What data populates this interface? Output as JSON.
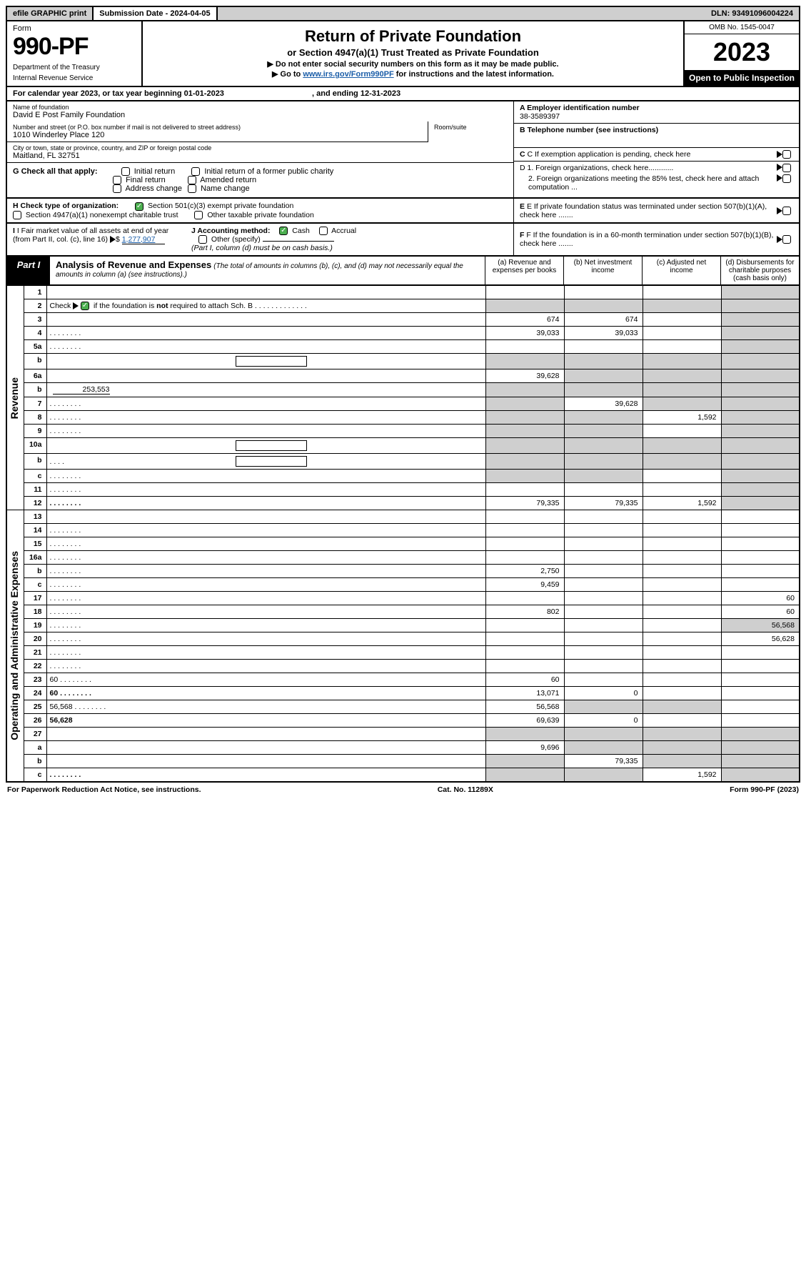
{
  "top": {
    "efile": "efile GRAPHIC print",
    "subdate_lbl": "Submission Date - ",
    "subdate": "2024-04-05",
    "dln_lbl": "DLN: ",
    "dln": "93491096004224"
  },
  "header": {
    "form_lbl": "Form",
    "form_num": "990-PF",
    "dept1": "Department of the Treasury",
    "dept2": "Internal Revenue Service",
    "title": "Return of Private Foundation",
    "subtitle": "or Section 4947(a)(1) Trust Treated as Private Foundation",
    "note1": "▶ Do not enter social security numbers on this form as it may be made public.",
    "note2_pre": "▶ Go to ",
    "note2_link": "www.irs.gov/Form990PF",
    "note2_post": " for instructions and the latest information.",
    "omb": "OMB No. 1545-0047",
    "year": "2023",
    "open": "Open to Public Inspection"
  },
  "calendar": {
    "text_pre": "For calendar year 2023, or tax year beginning ",
    "begin": "01-01-2023",
    "mid": " , and ending ",
    "end": "12-31-2023"
  },
  "info": {
    "name_lbl": "Name of foundation",
    "name": "David E Post Family Foundation",
    "addr_lbl": "Number and street (or P.O. box number if mail is not delivered to street address)",
    "addr": "1010 Winderley Place 120",
    "room_lbl": "Room/suite",
    "city_lbl": "City or town, state or province, country, and ZIP or foreign postal code",
    "city": "Maitland, FL  32751",
    "a_lbl": "A Employer identification number",
    "a_val": "38-3589397",
    "b_lbl": "B Telephone number (see instructions)",
    "c_lbl": "C If exemption application is pending, check here",
    "g_lbl": "G Check all that apply:",
    "g_opts": [
      "Initial return",
      "Final return",
      "Address change",
      "Initial return of a former public charity",
      "Amended return",
      "Name change"
    ],
    "d1": "D 1. Foreign organizations, check here............",
    "d2": "2. Foreign organizations meeting the 85% test, check here and attach computation ...",
    "h_lbl": "H Check type of organization:",
    "h_1": "Section 501(c)(3) exempt private foundation",
    "h_2": "Section 4947(a)(1) nonexempt charitable trust",
    "h_3": "Other taxable private foundation",
    "e_lbl": "E If private foundation status was terminated under section 507(b)(1)(A), check here .......",
    "i_lbl": "I Fair market value of all assets at end of year (from Part II, col. (c), line 16)",
    "i_val": "1,277,907",
    "j_lbl": "J Accounting method:",
    "j_cash": "Cash",
    "j_accr": "Accrual",
    "j_other": "Other (specify)",
    "j_note": "(Part I, column (d) must be on cash basis.)",
    "f_lbl": "F If the foundation is in a 60-month termination under section 507(b)(1)(B), check here ......."
  },
  "part1": {
    "tab": "Part I",
    "title": "Analysis of Revenue and Expenses",
    "title_note": "(The total of amounts in columns (b), (c), and (d) may not necessarily equal the amounts in column (a) (see instructions).)",
    "cols": {
      "a": "(a)  Revenue and expenses per books",
      "b": "(b)  Net investment income",
      "c": "(c)  Adjusted net income",
      "d": "(d)  Disbursements for charitable purposes (cash basis only)"
    }
  },
  "section_labels": {
    "revenue": "Revenue",
    "expenses": "Operating and Administrative Expenses"
  },
  "rows": [
    {
      "n": "1",
      "d": "",
      "a": "",
      "b": "",
      "c": "",
      "shade_d": true
    },
    {
      "n": "2",
      "d": "",
      "a": "",
      "b": "",
      "c": "",
      "shade_all": true,
      "dots": true,
      "check": true
    },
    {
      "n": "3",
      "d": "",
      "a": "674",
      "b": "674",
      "c": "",
      "shade_d": true
    },
    {
      "n": "4",
      "d": "",
      "a": "39,033",
      "b": "39,033",
      "c": "",
      "shade_d": true,
      "dots": true
    },
    {
      "n": "5a",
      "d": "",
      "a": "",
      "b": "",
      "c": "",
      "shade_d": true,
      "dots": true
    },
    {
      "n": "b",
      "d": "",
      "a": "",
      "b": "",
      "c": "",
      "shade_all": true,
      "inline_box": true
    },
    {
      "n": "6a",
      "d": "",
      "a": "39,628",
      "b": "",
      "c": "",
      "shade_bcd": true
    },
    {
      "n": "b",
      "d": "",
      "a": "",
      "b": "",
      "c": "",
      "shade_all": true,
      "inline_val": "253,553"
    },
    {
      "n": "7",
      "d": "",
      "a": "",
      "b": "39,628",
      "c": "",
      "shade_a": true,
      "shade_cd": true,
      "dots": true
    },
    {
      "n": "8",
      "d": "",
      "a": "",
      "b": "",
      "c": "1,592",
      "shade_ab": true,
      "shade_d": true,
      "dots": true
    },
    {
      "n": "9",
      "d": "",
      "a": "",
      "b": "",
      "c": "",
      "shade_ab": true,
      "shade_d": true,
      "dots": true
    },
    {
      "n": "10a",
      "d": "",
      "a": "",
      "b": "",
      "c": "",
      "shade_all": true,
      "inline_box": true
    },
    {
      "n": "b",
      "d": "",
      "a": "",
      "b": "",
      "c": "",
      "shade_all": true,
      "inline_box": true,
      "dots": true
    },
    {
      "n": "c",
      "d": "",
      "a": "",
      "b": "",
      "c": "",
      "shade_ab": true,
      "shade_d": true,
      "dots": true
    },
    {
      "n": "11",
      "d": "",
      "a": "",
      "b": "",
      "c": "",
      "shade_d": true,
      "dots": true
    },
    {
      "n": "12",
      "d": "",
      "a": "79,335",
      "b": "79,335",
      "c": "1,592",
      "shade_d": true,
      "bold": true,
      "dots": true
    },
    {
      "n": "13",
      "d": "",
      "a": "",
      "b": "",
      "c": ""
    },
    {
      "n": "14",
      "d": "",
      "a": "",
      "b": "",
      "c": "",
      "dots": true
    },
    {
      "n": "15",
      "d": "",
      "a": "",
      "b": "",
      "c": "",
      "dots": true
    },
    {
      "n": "16a",
      "d": "",
      "a": "",
      "b": "",
      "c": "",
      "dots": true
    },
    {
      "n": "b",
      "d": "",
      "a": "2,750",
      "b": "",
      "c": "",
      "dots": true
    },
    {
      "n": "c",
      "d": "",
      "a": "9,459",
      "b": "",
      "c": "",
      "dots": true
    },
    {
      "n": "17",
      "d": "",
      "a": "",
      "b": "",
      "c": "",
      "dots": true
    },
    {
      "n": "18",
      "d": "",
      "a": "802",
      "b": "",
      "c": "",
      "dots": true
    },
    {
      "n": "19",
      "d": "",
      "a": "",
      "b": "",
      "c": "",
      "shade_d": true,
      "dots": true
    },
    {
      "n": "20",
      "d": "",
      "a": "",
      "b": "",
      "c": "",
      "dots": true
    },
    {
      "n": "21",
      "d": "",
      "a": "",
      "b": "",
      "c": "",
      "dots": true
    },
    {
      "n": "22",
      "d": "",
      "a": "",
      "b": "",
      "c": "",
      "dots": true
    },
    {
      "n": "23",
      "d": "60",
      "a": "60",
      "b": "",
      "c": "",
      "dots": true
    },
    {
      "n": "24",
      "d": "60",
      "a": "13,071",
      "b": "0",
      "c": "",
      "bold": true,
      "dots": true,
      "twoline": true
    },
    {
      "n": "25",
      "d": "56,568",
      "a": "56,568",
      "b": "",
      "c": "",
      "shade_bc": true,
      "dots": true
    },
    {
      "n": "26",
      "d": "56,628",
      "a": "69,639",
      "b": "0",
      "c": "",
      "bold": true,
      "twoline": true
    },
    {
      "n": "27",
      "d": "",
      "a": "",
      "b": "",
      "c": "",
      "shade_all": true
    },
    {
      "n": "a",
      "d": "",
      "a": "9,696",
      "b": "",
      "c": "",
      "shade_bcd": true,
      "bold": true
    },
    {
      "n": "b",
      "d": "",
      "a": "",
      "b": "79,335",
      "c": "",
      "shade_a": true,
      "shade_cd": true,
      "bold": true
    },
    {
      "n": "c",
      "d": "",
      "a": "",
      "b": "",
      "c": "1,592",
      "shade_ab": true,
      "shade_d": true,
      "bold": true,
      "dots": true
    }
  ],
  "footer": {
    "left": "For Paperwork Reduction Act Notice, see instructions.",
    "mid": "Cat. No. 11289X",
    "right": "Form 990-PF (2023)"
  }
}
